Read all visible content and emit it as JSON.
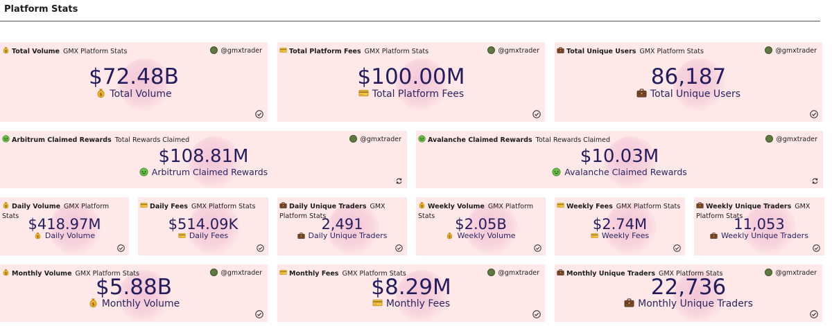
{
  "page": {
    "title": "Platform Stats"
  },
  "cards": {
    "total_volume": {
      "label": "Total Volume",
      "source": "GMX Platform Stats",
      "user": "@gmxtrader",
      "value": "$72.48B",
      "subtitle": "Total Volume",
      "icon": "money-bag-icon"
    },
    "total_fees": {
      "label": "Total Platform Fees",
      "source": "GMX Platform Stats",
      "user": "@gmxtrader",
      "value": "$100.00M",
      "subtitle": "Total Platform Fees",
      "icon": "credit-card-icon"
    },
    "total_users": {
      "label": "Total Unique Users",
      "source": "GMX Platform Stats",
      "user": "@gmxtrader",
      "value": "86,187",
      "subtitle": "Total Unique Users",
      "icon": "briefcase-icon"
    },
    "arbitrum_rewards": {
      "label": "Arbitrum Claimed Rewards",
      "source": "Total Rewards Claimed",
      "user": "@gmxtrader",
      "value": "$108.81M",
      "subtitle": "Arbitrum Claimed Rewards",
      "icon": "money-face-icon"
    },
    "avalanche_rewards": {
      "label": "Avalanche Claimed Rewards",
      "source": "Total Rewards Claimed",
      "user": "@gmxtrader",
      "value": "$10.03M",
      "subtitle": "Avalanche Claimed Rewards",
      "icon": "money-face-icon"
    },
    "daily_volume": {
      "label": "Daily Volume",
      "source": "GMX Platform Stats",
      "value": "$418.97M",
      "subtitle": "Daily Volume",
      "icon": "money-bag-icon"
    },
    "daily_fees": {
      "label": "Daily Fees",
      "source": "GMX Platform Stats",
      "value": "$514.09K",
      "subtitle": "Daily Fees",
      "icon": "credit-card-icon"
    },
    "daily_traders": {
      "label": "Daily Unique Traders",
      "source": "GMX Platform Stats",
      "value": "2,491",
      "subtitle": "Daily Unique Traders",
      "icon": "briefcase-icon"
    },
    "weekly_volume": {
      "label": "Weekly Volume",
      "source": "GMX Platform Stats",
      "value": "$2.05B",
      "subtitle": "Weekly Volume",
      "icon": "money-bag-icon"
    },
    "weekly_fees": {
      "label": "Weekly Fees",
      "source": "GMX Platform Stats",
      "value": "$2.74M",
      "subtitle": "Weekly Fees",
      "icon": "credit-card-icon"
    },
    "weekly_traders": {
      "label": "Weekly Unique Traders",
      "source": "GMX Platform Stats",
      "value": "11,053",
      "subtitle": "Weekly Unique Traders",
      "icon": "briefcase-icon"
    },
    "monthly_volume": {
      "label": "Monthly Volume",
      "source": "GMX Platform Stats",
      "user": "@gmxtrader",
      "value": "$5.88B",
      "subtitle": "Monthly Volume",
      "icon": "money-bag-icon"
    },
    "monthly_fees": {
      "label": "Monthly Fees",
      "source": "GMX Platform Stats",
      "user": "@gmxtrader",
      "value": "$8.29M",
      "subtitle": "Monthly Fees",
      "icon": "credit-card-icon"
    },
    "monthly_traders": {
      "label": "Monthly Unique Traders",
      "source": "GMX Platform Stats",
      "user": "@gmxtrader",
      "value": "22,736",
      "subtitle": "Monthly Unique Traders",
      "icon": "briefcase-icon"
    }
  },
  "colors": {
    "card_bg": "#ffe8e8",
    "value_text": "#241c5c",
    "glow": "#f2c4d6"
  }
}
